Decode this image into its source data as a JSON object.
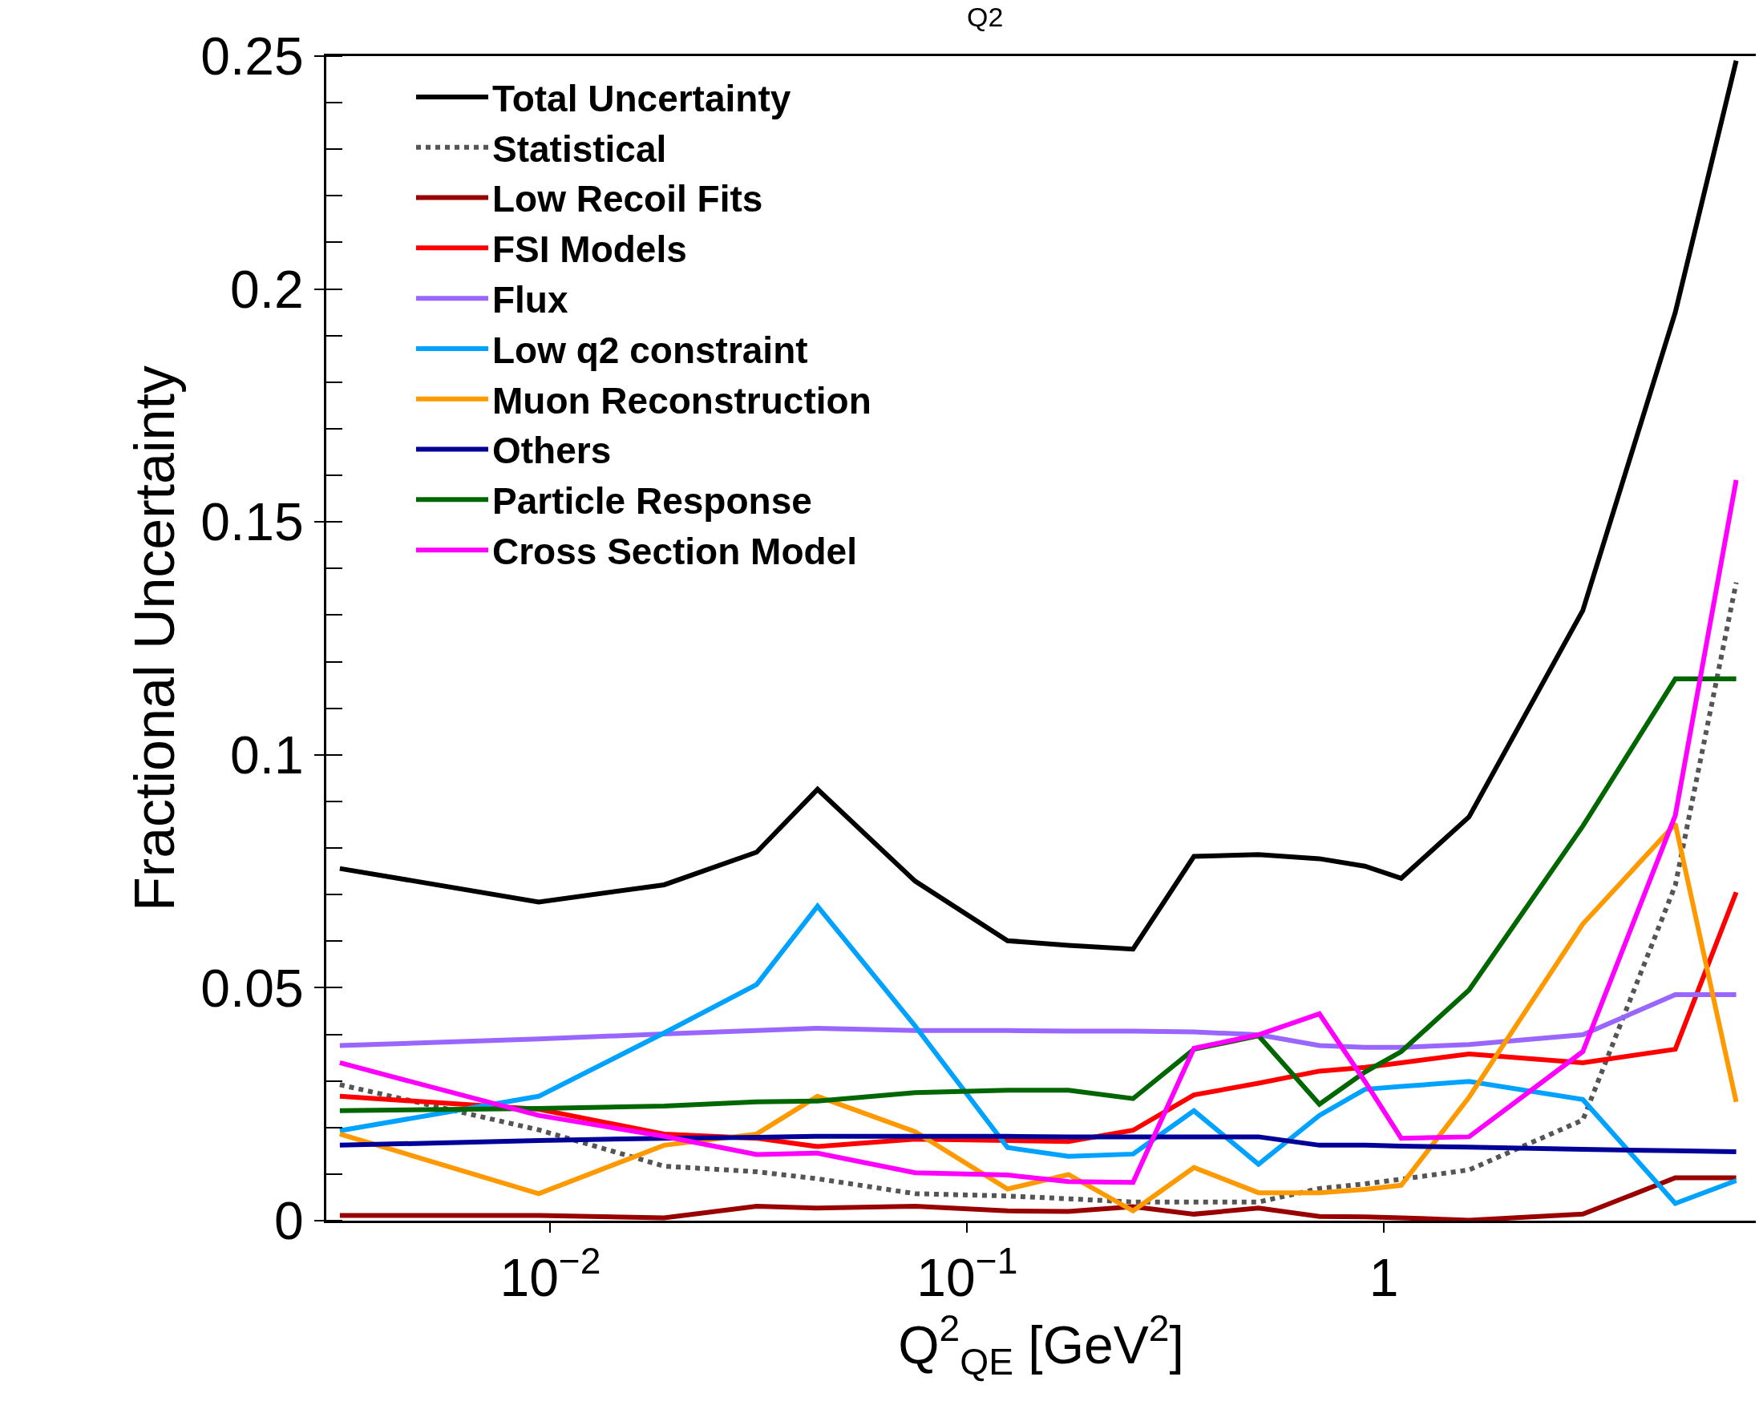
{
  "chart_data": {
    "type": "line",
    "title": "Q2",
    "xlabel": "Q$^{2}$$_{QE}$ [GeV$^{2}$]",
    "ylabel": "Fractional Uncertainty",
    "log": "x",
    "grid": false,
    "legend": "top left",
    "marker": "none",
    "x": [
      0.003125,
      0.009375,
      0.01875,
      0.03125,
      0.04375,
      0.075,
      0.125,
      0.175,
      0.25,
      0.35,
      0.5,
      0.7,
      0.9,
      1.1,
      1.6,
      3.0,
      5.0,
      7.0
    ],
    "xlim": [
      0.0029,
      7.8
    ],
    "xticks": [
      {
        "value": 0.01,
        "label": "10$^{−2}$"
      },
      {
        "value": 0.1,
        "label": "10$^{−1}$"
      },
      1
    ],
    "ylim": [
      0,
      0.25
    ],
    "yticks": [
      0,
      0.05,
      0.1,
      0.15,
      0.2,
      0.25
    ],
    "series": [
      {
        "name": "Total Uncertainty",
        "color": "#000000",
        "line_style": "solid",
        "values": [
          0.0756,
          0.0684,
          0.0721,
          0.0791,
          0.0926,
          0.0729,
          0.0601,
          0.0591,
          0.0583,
          0.0782,
          0.0786,
          0.0777,
          0.0761,
          0.0735,
          0.0867,
          0.131,
          0.195,
          0.249
        ]
      },
      {
        "name": "Statistical",
        "color": "#555555",
        "line_style": "dotted",
        "values": [
          0.0292,
          0.0195,
          0.0117,
          0.0105,
          0.009,
          0.0058,
          0.0053,
          0.0047,
          0.004,
          0.004,
          0.004,
          0.0069,
          0.0079,
          0.0089,
          0.0109,
          0.0216,
          0.072,
          0.137
        ]
      },
      {
        "name": "Low Recoil Fits",
        "color": "#990000",
        "line_style": "solid",
        "values": [
          0.0011,
          0.0011,
          0.0006,
          0.0031,
          0.0027,
          0.0031,
          0.0021,
          0.002,
          0.003,
          0.0014,
          0.0027,
          0.0009,
          0.0008,
          0.0006,
          0.0001,
          0.0014,
          0.0092,
          0.0092
        ]
      },
      {
        "name": "FSI Models",
        "color": "#ff0000",
        "line_style": "solid",
        "values": [
          0.0267,
          0.0239,
          0.0186,
          0.0177,
          0.0159,
          0.0175,
          0.0172,
          0.017,
          0.0194,
          0.027,
          0.0295,
          0.0321,
          0.0329,
          0.0339,
          0.0358,
          0.0339,
          0.0368,
          0.0705
        ]
      },
      {
        "name": "Flux",
        "color": "#9966ff",
        "line_style": "solid",
        "values": [
          0.0376,
          0.039,
          0.0401,
          0.0408,
          0.0413,
          0.0408,
          0.0408,
          0.0407,
          0.0407,
          0.0405,
          0.0399,
          0.0376,
          0.0372,
          0.0372,
          0.0378,
          0.0399,
          0.0485,
          0.0485
        ]
      },
      {
        "name": "Low q2 constraint",
        "color": "#00a2ff",
        "line_style": "solid",
        "values": [
          0.0193,
          0.0267,
          0.0403,
          0.0507,
          0.0675,
          0.0418,
          0.0157,
          0.0138,
          0.0143,
          0.0236,
          0.0121,
          0.0226,
          0.0282,
          0.0288,
          0.0299,
          0.026,
          0.0037,
          0.0086
        ]
      },
      {
        "name": "Muon Reconstruction",
        "color": "#ff9900",
        "line_style": "solid",
        "values": [
          0.0186,
          0.0058,
          0.0162,
          0.0186,
          0.0267,
          0.0191,
          0.0068,
          0.0099,
          0.0021,
          0.0114,
          0.006,
          0.006,
          0.0067,
          0.0076,
          0.0265,
          0.0637,
          0.0852,
          0.0255
        ]
      },
      {
        "name": "Others",
        "color": "#000099",
        "line_style": "solid",
        "values": [
          0.0162,
          0.0172,
          0.0177,
          0.0179,
          0.0181,
          0.0181,
          0.0181,
          0.018,
          0.018,
          0.018,
          0.018,
          0.0162,
          0.0162,
          0.016,
          0.0158,
          0.0153,
          0.015,
          0.0148
        ]
      },
      {
        "name": "Particle Response",
        "color": "#006600",
        "line_style": "solid",
        "values": [
          0.0236,
          0.0241,
          0.0246,
          0.0255,
          0.0257,
          0.0275,
          0.028,
          0.028,
          0.0262,
          0.0368,
          0.0397,
          0.025,
          0.0319,
          0.0363,
          0.0495,
          0.0847,
          0.1163,
          0.1163
        ]
      },
      {
        "name": "Cross Section Model",
        "color": "#ff00ff",
        "line_style": "solid",
        "values": [
          0.0339,
          0.0226,
          0.0181,
          0.0142,
          0.0145,
          0.0103,
          0.0098,
          0.0084,
          0.0082,
          0.037,
          0.0399,
          0.0444,
          0.0299,
          0.0177,
          0.018,
          0.0363,
          0.087,
          0.159
        ]
      }
    ]
  }
}
